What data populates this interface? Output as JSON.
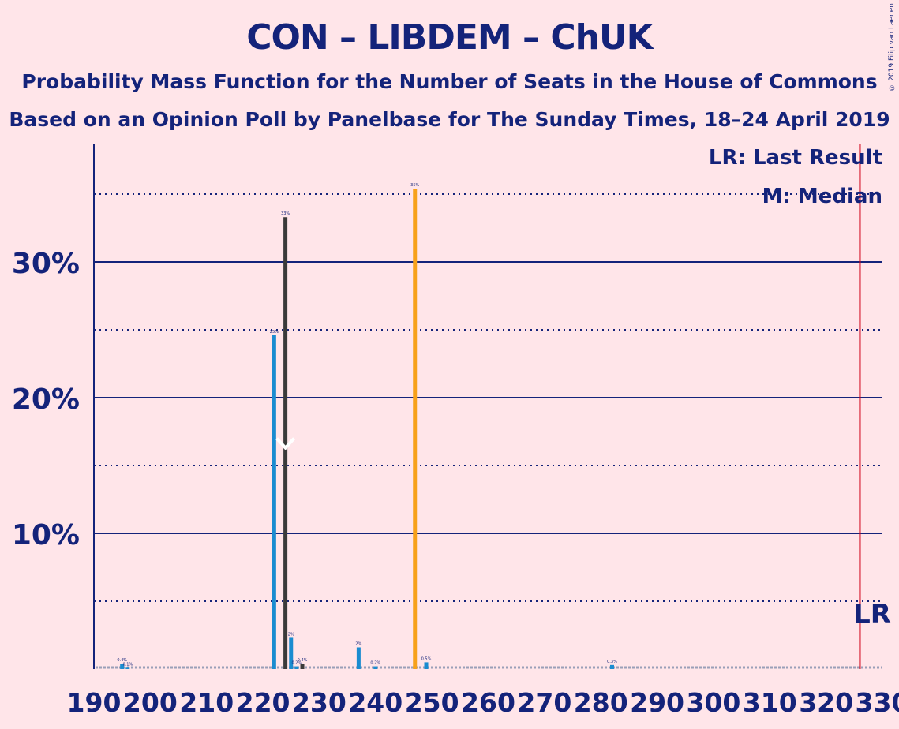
{
  "title": "CON – LIBDEM – ChUK",
  "subtitle_1": "Probability Mass Function for the Number of Seats in the House of Commons",
  "subtitle_2": "Based on an Opinion Poll by Panelbase for The Sunday Times, 18–24 April 2019",
  "copyright": "© 2019 Filip van Laenen",
  "legend": {
    "last_result": "LR: Last Result",
    "median": "M: Median"
  },
  "colors": {
    "background": "#FFE5E9",
    "text": "#14237A",
    "blue": "#1A8CD0",
    "dark": "#3A3A3A",
    "orange": "#F7A11A",
    "lr_line": "#D0021B"
  },
  "chart_data": {
    "type": "bar",
    "title": "CON – LIBDEM – ChUK",
    "xlabel": "",
    "ylabel": "",
    "xlim": [
      190,
      330
    ],
    "ylim": [
      0,
      38
    ],
    "x_ticks": [
      "190",
      "200",
      "210",
      "220",
      "230",
      "240",
      "250",
      "260",
      "270",
      "280",
      "290",
      "300",
      "310",
      "320",
      "330"
    ],
    "y_ticks": [
      {
        "value": 10,
        "label": "10%"
      },
      {
        "value": 20,
        "label": "20%"
      },
      {
        "value": 30,
        "label": "30%"
      }
    ],
    "dotted_gridlines": [
      5,
      15,
      25,
      35
    ],
    "bars": [
      {
        "x": 195,
        "value": 0.4,
        "label": "0.4%",
        "color": "blue"
      },
      {
        "x": 196,
        "value": 0.1,
        "label": "0.1%",
        "color": "blue"
      },
      {
        "x": 222,
        "value": 24.6,
        "label": "25%",
        "color": "blue"
      },
      {
        "x": 224,
        "value": 33.3,
        "label": "33%",
        "color": "dark"
      },
      {
        "x": 225,
        "value": 2.3,
        "label": "2%",
        "color": "blue"
      },
      {
        "x": 226,
        "value": 0.2,
        "label": "0.2%",
        "color": "blue"
      },
      {
        "x": 227,
        "value": 0.4,
        "label": "0.4%",
        "color": "dark"
      },
      {
        "x": 237,
        "value": 1.6,
        "label": "2%",
        "color": "blue"
      },
      {
        "x": 240,
        "value": 0.2,
        "label": "0.2%",
        "color": "blue"
      },
      {
        "x": 247,
        "value": 35.4,
        "label": "35%",
        "color": "orange"
      },
      {
        "x": 249,
        "value": 0.5,
        "label": "0.5%",
        "color": "blue"
      },
      {
        "x": 282,
        "value": 0.3,
        "label": "0.3%",
        "color": "blue"
      }
    ],
    "median_x": 224,
    "median_marker": "M",
    "last_result_x": 326,
    "last_result_label": "LR"
  }
}
